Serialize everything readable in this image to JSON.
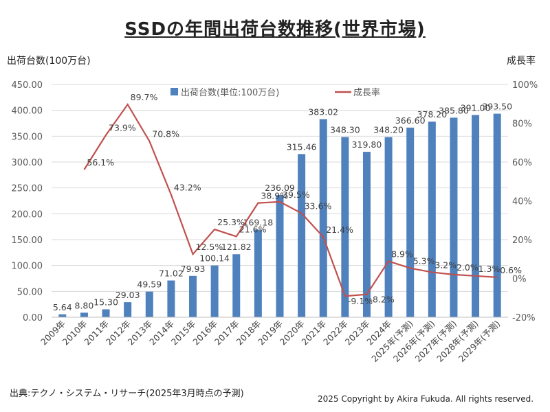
{
  "title": "SSDの年間出荷台数推移(世界市場)",
  "source": "出典:テクノ・システム・リサーチ(2025年3月時点の予測)",
  "copyright": "2025 Copyright by Akira Fukuda.  All rights reserved.",
  "chart_data": {
    "type": "bar+line",
    "title": "SSDの年間出荷台数推移(世界市場)",
    "ylabel": "出荷台数(100万台)",
    "y2label": "成長率",
    "ylim": [
      0,
      450
    ],
    "y2lim": [
      -20,
      100
    ],
    "yticks": [
      "0.00",
      "50.00",
      "100.00",
      "150.00",
      "200.00",
      "250.00",
      "300.00",
      "350.00",
      "400.00",
      "450.00"
    ],
    "y2ticks": [
      "-20%",
      "0%",
      "20%",
      "40%",
      "60%",
      "80%",
      "100%"
    ],
    "grid": true,
    "legend": "top",
    "categories": [
      "2009年",
      "2010年",
      "2011年",
      "2012年",
      "2013年",
      "2014年",
      "2015年",
      "2016年",
      "2017年",
      "2018年",
      "2019年",
      "2020年",
      "2021年",
      "2022年",
      "2023年",
      "2024年",
      "2025年(予測)",
      "2026年(予測)",
      "2027年(予測)",
      "2028年(予測)",
      "2029年(予測)"
    ],
    "series": [
      {
        "name": "出荷台数(単位:100万台)",
        "type": "bar",
        "axis": "left",
        "color": "#4f81bd",
        "values": [
          5.64,
          8.8,
          15.3,
          29.03,
          49.59,
          71.02,
          79.93,
          100.14,
          121.82,
          169.18,
          236.09,
          315.46,
          383.02,
          348.3,
          319.8,
          348.2,
          366.6,
          378.2,
          385.8,
          391.0,
          393.5
        ],
        "labels": [
          "5.64",
          "8.80",
          "15.30",
          "29.03",
          "49.59",
          "71.02",
          "79.93",
          "100.14",
          "121.82",
          "169.18",
          "236.09",
          "315.46",
          "383.02",
          "348.30",
          "319.80",
          "348.20",
          "366.60",
          "378.20",
          "385.80",
          "391.00",
          "393.50"
        ]
      },
      {
        "name": "成長率",
        "type": "line",
        "axis": "right",
        "color": "#c0504d",
        "values": [
          null,
          56.1,
          73.9,
          89.7,
          70.8,
          43.2,
          12.5,
          25.3,
          21.6,
          38.9,
          39.5,
          33.6,
          21.4,
          -9.1,
          -8.2,
          8.9,
          5.3,
          3.2,
          2.0,
          1.3,
          0.6
        ],
        "labels": [
          null,
          "56.1%",
          "73.9%",
          "89.7%",
          "70.8%",
          "43.2%",
          "12.5%",
          "25.3%",
          "21.6%",
          "38.9%",
          "39.5%",
          "33.6%",
          "21.4%",
          "-9.1%",
          "-8.2%",
          "8.9%",
          "5.3%",
          "3.2%",
          "2.0%",
          "1.3%",
          "0.6%"
        ]
      }
    ]
  }
}
